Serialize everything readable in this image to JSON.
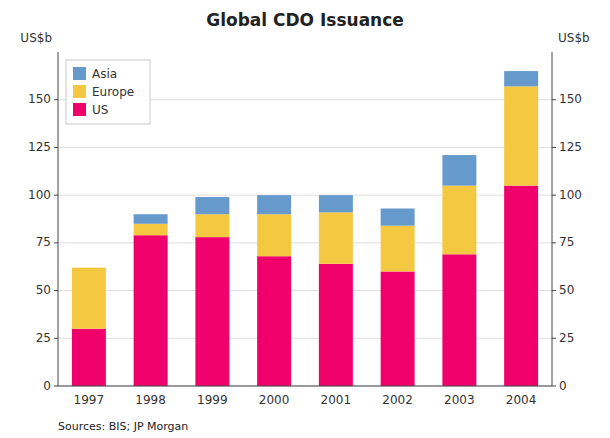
{
  "chart_data": {
    "type": "bar",
    "stacked": true,
    "title": "Global CDO Issuance",
    "y_label": "US$b",
    "y2_label": "US$b",
    "categories": [
      "1997",
      "1998",
      "1999",
      "2000",
      "2001",
      "2002",
      "2003",
      "2004"
    ],
    "series": [
      {
        "name": "US",
        "color": "#F0006A",
        "values": [
          30,
          79,
          78,
          68,
          64,
          60,
          69,
          105
        ]
      },
      {
        "name": "Europe",
        "color": "#F5C842",
        "values": [
          32,
          6,
          12,
          22,
          27,
          24,
          36,
          52
        ]
      },
      {
        "name": "Asia",
        "color": "#6699CC",
        "values": [
          0,
          5,
          9,
          10,
          9,
          9,
          16,
          8
        ]
      }
    ],
    "ylim": [
      0,
      175
    ],
    "yticks": [
      0,
      25,
      50,
      75,
      100,
      125,
      150
    ],
    "y2lim": [
      0,
      175
    ],
    "y2ticks": [
      0,
      25,
      50,
      75,
      100,
      125,
      150
    ],
    "grid": true,
    "legend": "upper left",
    "annotations": [
      "Sources: BIS; JP Morgan"
    ]
  }
}
